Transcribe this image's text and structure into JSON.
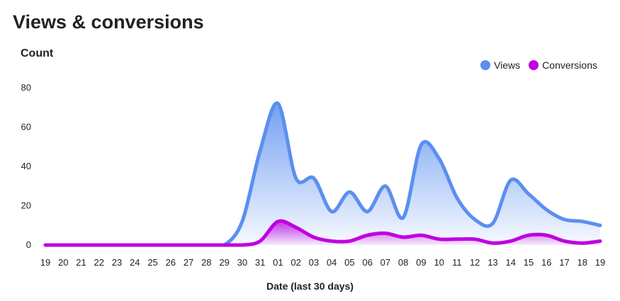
{
  "title": "Views & conversions",
  "chart_data": {
    "type": "area",
    "ylabel": "Count",
    "xlabel": "Date (last 30 days)",
    "categories": [
      "19",
      "20",
      "21",
      "22",
      "23",
      "24",
      "25",
      "26",
      "27",
      "28",
      "29",
      "30",
      "31",
      "01",
      "02",
      "03",
      "04",
      "05",
      "06",
      "07",
      "08",
      "09",
      "10",
      "11",
      "12",
      "13",
      "14",
      "15",
      "16",
      "17",
      "18",
      "19"
    ],
    "yticks": [
      0,
      20,
      40,
      60,
      80
    ],
    "ylim": [
      0,
      80
    ],
    "grid": false,
    "legend_position": "top-right",
    "series": [
      {
        "name": "Views",
        "color": "#5b8ff0",
        "values": [
          0,
          0,
          0,
          0,
          0,
          0,
          0,
          0,
          0,
          0,
          0,
          12,
          48,
          72,
          34,
          34,
          17,
          27,
          17,
          30,
          14,
          51,
          44,
          24,
          13,
          11,
          33,
          26,
          18,
          13,
          12,
          10
        ]
      },
      {
        "name": "Conversions",
        "color": "#c000e0",
        "values": [
          0,
          0,
          0,
          0,
          0,
          0,
          0,
          0,
          0,
          0,
          0,
          0,
          2,
          12,
          9,
          4,
          2,
          2,
          5,
          6,
          4,
          5,
          3,
          3,
          3,
          1,
          2,
          5,
          5,
          2,
          1,
          2
        ]
      }
    ]
  }
}
